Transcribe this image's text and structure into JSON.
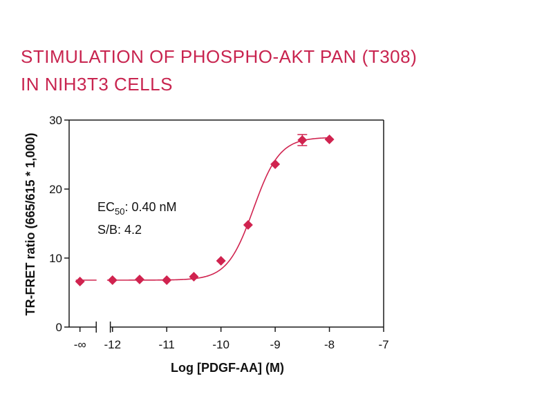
{
  "chart_data": {
    "type": "scatter",
    "title_line1": "STIMULATION OF PHOSPHO-AKT PAN (T308)",
    "title_line2": "IN NIH3T3 CELLS",
    "xlabel": "Log [PDGF-AA] (M)",
    "ylabel": "TR-FRET ratio (665/615 * 1,000)",
    "xlim": [
      -12.8,
      -7
    ],
    "ylim": [
      0,
      30
    ],
    "x_ticks": [
      {
        "value": -12.6,
        "label": "-∞"
      },
      {
        "value": -12,
        "label": "-12"
      },
      {
        "value": -11,
        "label": "-11"
      },
      {
        "value": -10,
        "label": "-10"
      },
      {
        "value": -9,
        "label": "-9"
      },
      {
        "value": -8,
        "label": "-8"
      },
      {
        "value": -7,
        "label": "-7"
      }
    ],
    "y_ticks": [
      {
        "value": 0,
        "label": "0"
      },
      {
        "value": 10,
        "label": "10"
      },
      {
        "value": 20,
        "label": "20"
      },
      {
        "value": 30,
        "label": "30"
      }
    ],
    "axis_break": true,
    "grid": false,
    "color": "#d0234f",
    "points": [
      {
        "x": -12.6,
        "label": "-∞",
        "y": 6.6
      },
      {
        "x": -12,
        "y": 6.8
      },
      {
        "x": -11.5,
        "y": 6.9
      },
      {
        "x": -11,
        "y": 6.8
      },
      {
        "x": -10.5,
        "y": 7.3
      },
      {
        "x": -10,
        "y": 9.6
      },
      {
        "x": -9.5,
        "y": 14.8
      },
      {
        "x": -9,
        "y": 23.6
      },
      {
        "x": -8.5,
        "y": 27.1,
        "err": 0.8
      },
      {
        "x": -8,
        "y": 27.2
      }
    ],
    "fit": {
      "bottom": 6.8,
      "top": 27.5,
      "logEC50": -9.4,
      "hill": 1.8,
      "x_start": -12.6,
      "x_end": -8
    },
    "annotation": {
      "ec_prefix": "EC",
      "ec_sub": "50",
      "ec_value": ": 0.40 nM",
      "sb": "S/B: 4.2"
    }
  }
}
